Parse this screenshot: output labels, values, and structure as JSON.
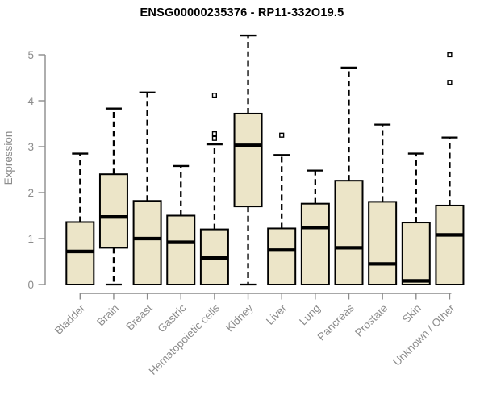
{
  "title": "ENSG00000235376 - RP11-332O19.5",
  "chart_data": {
    "type": "boxplot",
    "title": "ENSG00000235376 - RP11-332O19.5",
    "xlabel": "",
    "ylabel": "Expression",
    "ylim": [
      0,
      5.5
    ],
    "yticks": [
      0,
      1,
      2,
      3,
      4,
      5
    ],
    "grid": false,
    "legend": null,
    "categories": [
      "Bladder",
      "Brain",
      "Breast",
      "Gastric",
      "Hematopoietic cells",
      "Kidney",
      "Liver",
      "Lung",
      "Pancreas",
      "Prostate",
      "Skin",
      "Unknown / Other"
    ],
    "boxes": [
      {
        "category": "Bladder",
        "whisker_low": 0,
        "q1": 0,
        "median": 0.72,
        "q3": 1.36,
        "whisker_high": 2.85,
        "outliers": []
      },
      {
        "category": "Brain",
        "whisker_low": 0,
        "q1": 0.8,
        "median": 1.47,
        "q3": 2.4,
        "whisker_high": 3.83,
        "outliers": []
      },
      {
        "category": "Breast",
        "whisker_low": 0,
        "q1": 0,
        "median": 1.0,
        "q3": 1.82,
        "whisker_high": 4.18,
        "outliers": []
      },
      {
        "category": "Gastric",
        "whisker_low": 0,
        "q1": 0,
        "median": 0.92,
        "q3": 1.5,
        "whisker_high": 2.58,
        "outliers": []
      },
      {
        "category": "Hematopoietic cells",
        "whisker_low": 0,
        "q1": 0,
        "median": 0.58,
        "q3": 1.2,
        "whisker_high": 3.05,
        "outliers": [
          3.18,
          3.28,
          4.12
        ]
      },
      {
        "category": "Kidney",
        "whisker_low": 0,
        "q1": 1.7,
        "median": 3.03,
        "q3": 3.72,
        "whisker_high": 5.42,
        "outliers": []
      },
      {
        "category": "Liver",
        "whisker_low": 0,
        "q1": 0,
        "median": 0.75,
        "q3": 1.22,
        "whisker_high": 2.82,
        "outliers": [
          3.25
        ]
      },
      {
        "category": "Lung",
        "whisker_low": 0,
        "q1": 0,
        "median": 1.24,
        "q3": 1.76,
        "whisker_high": 2.48,
        "outliers": []
      },
      {
        "category": "Pancreas",
        "whisker_low": 0,
        "q1": 0,
        "median": 0.8,
        "q3": 2.26,
        "whisker_high": 4.72,
        "outliers": []
      },
      {
        "category": "Prostate",
        "whisker_low": 0,
        "q1": 0,
        "median": 0.45,
        "q3": 1.8,
        "whisker_high": 3.48,
        "outliers": []
      },
      {
        "category": "Skin",
        "whisker_low": 0,
        "q1": 0,
        "median": 0.08,
        "q3": 1.35,
        "whisker_high": 2.85,
        "outliers": []
      },
      {
        "category": "Unknown / Other",
        "whisker_low": 0,
        "q1": 0,
        "median": 1.08,
        "q3": 1.72,
        "whisker_high": 3.2,
        "outliers": [
          4.4,
          5.0
        ]
      }
    ],
    "colors": {
      "box_fill": "#ece5c8",
      "box_border": "#000000",
      "median": "#000000",
      "whisker": "#000000",
      "outlier": "#000000",
      "axis": "#8c8c8c",
      "tick_label": "#8c8c8c",
      "title": "#000000",
      "background": "#ffffff"
    }
  }
}
